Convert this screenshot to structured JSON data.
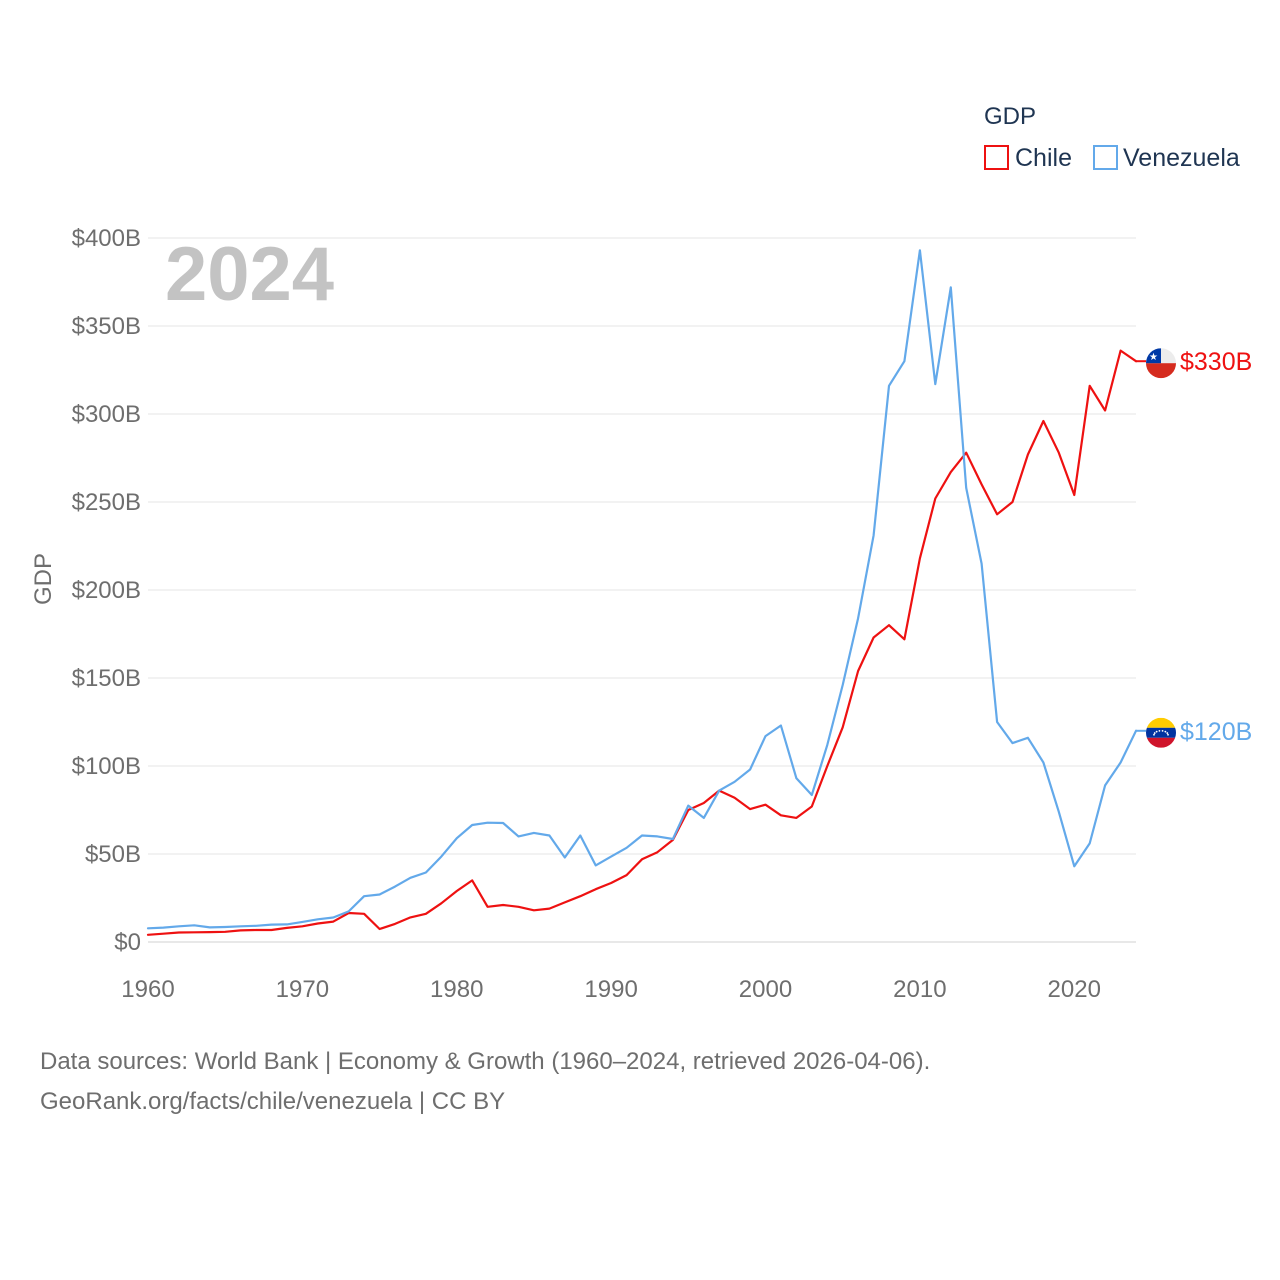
{
  "chart_data": {
    "type": "line",
    "title": "GDP",
    "year_label": "2024",
    "ylabel": "GDP",
    "xlabel": "",
    "xlim": [
      1960,
      2024
    ],
    "ylim": [
      0,
      400
    ],
    "y_unit": "billion USD",
    "x_ticks": [
      1960,
      1970,
      1980,
      1990,
      2000,
      2010,
      2020
    ],
    "x_tick_labels": [
      "1960",
      "1970",
      "1980",
      "1990",
      "2000",
      "2010",
      "2020"
    ],
    "y_ticks": [
      0,
      50,
      100,
      150,
      200,
      250,
      300,
      350,
      400
    ],
    "y_tick_labels": [
      "$0",
      "$50B",
      "$100B",
      "$150B",
      "$200B",
      "$250B",
      "$300B",
      "$350B",
      "$400B"
    ],
    "legend": {
      "title": "GDP",
      "position": "top-right",
      "entries": [
        "Chile",
        "Venezuela"
      ]
    },
    "grid": true,
    "series": [
      {
        "name": "Chile",
        "color": "#ee1111",
        "flag": "chile-flag",
        "end_label": "$330B",
        "x": [
          1960,
          1961,
          1962,
          1963,
          1964,
          1965,
          1966,
          1967,
          1968,
          1969,
          1970,
          1971,
          1972,
          1973,
          1974,
          1975,
          1976,
          1977,
          1978,
          1979,
          1980,
          1981,
          1982,
          1983,
          1984,
          1985,
          1986,
          1987,
          1988,
          1989,
          1990,
          1991,
          1992,
          1993,
          1994,
          1995,
          1996,
          1997,
          1998,
          1999,
          2000,
          2001,
          2002,
          2003,
          2004,
          2005,
          2006,
          2007,
          2008,
          2009,
          2010,
          2011,
          2012,
          2013,
          2014,
          2015,
          2016,
          2017,
          2018,
          2019,
          2020,
          2021,
          2022,
          2023,
          2024
        ],
        "values": [
          4.1,
          4.7,
          5.4,
          5.5,
          5.6,
          5.8,
          6.6,
          6.8,
          6.8,
          8.0,
          8.9,
          10.5,
          11.6,
          16.5,
          16.0,
          7.4,
          10.3,
          14.0,
          16.0,
          22.0,
          29.0,
          35.0,
          20.0,
          21.0,
          20.0,
          18.0,
          19.0,
          22.5,
          26.0,
          30.0,
          33.5,
          38.0,
          47.0,
          51.0,
          58.0,
          75.0,
          79.0,
          86.0,
          82.0,
          75.5,
          78.0,
          72.0,
          70.5,
          77.0,
          100.0,
          122.0,
          154.0,
          173.0,
          180.0,
          172.0,
          218.0,
          252.0,
          267.0,
          278.0,
          260.0,
          243.0,
          250.0,
          277.0,
          296.0,
          278.0,
          254.0,
          316.0,
          302.0,
          336.0,
          330.0
        ]
      },
      {
        "name": "Venezuela",
        "color": "#63a9ea",
        "flag": "venezuela-flag",
        "end_label": "$120B",
        "x": [
          1960,
          1961,
          1962,
          1963,
          1964,
          1965,
          1966,
          1967,
          1968,
          1969,
          1970,
          1971,
          1972,
          1973,
          1974,
          1975,
          1976,
          1977,
          1978,
          1979,
          1980,
          1981,
          1982,
          1983,
          1984,
          1985,
          1986,
          1987,
          1988,
          1989,
          1990,
          1991,
          1992,
          1993,
          1994,
          1995,
          1996,
          1997,
          1998,
          1999,
          2000,
          2001,
          2002,
          2003,
          2004,
          2005,
          2006,
          2007,
          2008,
          2009,
          2010,
          2011,
          2012,
          2013,
          2014,
          2015,
          2016,
          2017,
          2018,
          2019,
          2020,
          2021,
          2022,
          2023,
          2024
        ],
        "values": [
          7.8,
          8.2,
          8.9,
          9.5,
          8.3,
          8.5,
          8.9,
          9.2,
          9.9,
          10.0,
          11.4,
          12.9,
          13.9,
          17.4,
          26.0,
          27.0,
          31.5,
          36.5,
          39.5,
          48.5,
          59.0,
          66.5,
          67.8,
          67.6,
          60.0,
          62.0,
          60.5,
          48.0,
          60.5,
          43.5,
          48.5,
          53.5,
          60.5,
          60.0,
          58.5,
          77.5,
          70.5,
          86.0,
          91.0,
          98.0,
          117.0,
          123.0,
          93.0,
          83.5,
          112.0,
          146.0,
          184.0,
          231.0,
          316.0,
          330.0,
          393.0,
          317.0,
          372.0,
          258.0,
          215.0,
          125.0,
          113.0,
          116.0,
          102.0,
          74.0,
          43.0,
          56.0,
          89.0,
          102.0,
          120.0
        ]
      }
    ]
  },
  "footer": {
    "line1": "Data sources: World Bank | Economy & Growth (1960–2024, retrieved 2026-04-06).",
    "line2": "GeoRank.org/facts/chile/venezuela | CC BY"
  }
}
